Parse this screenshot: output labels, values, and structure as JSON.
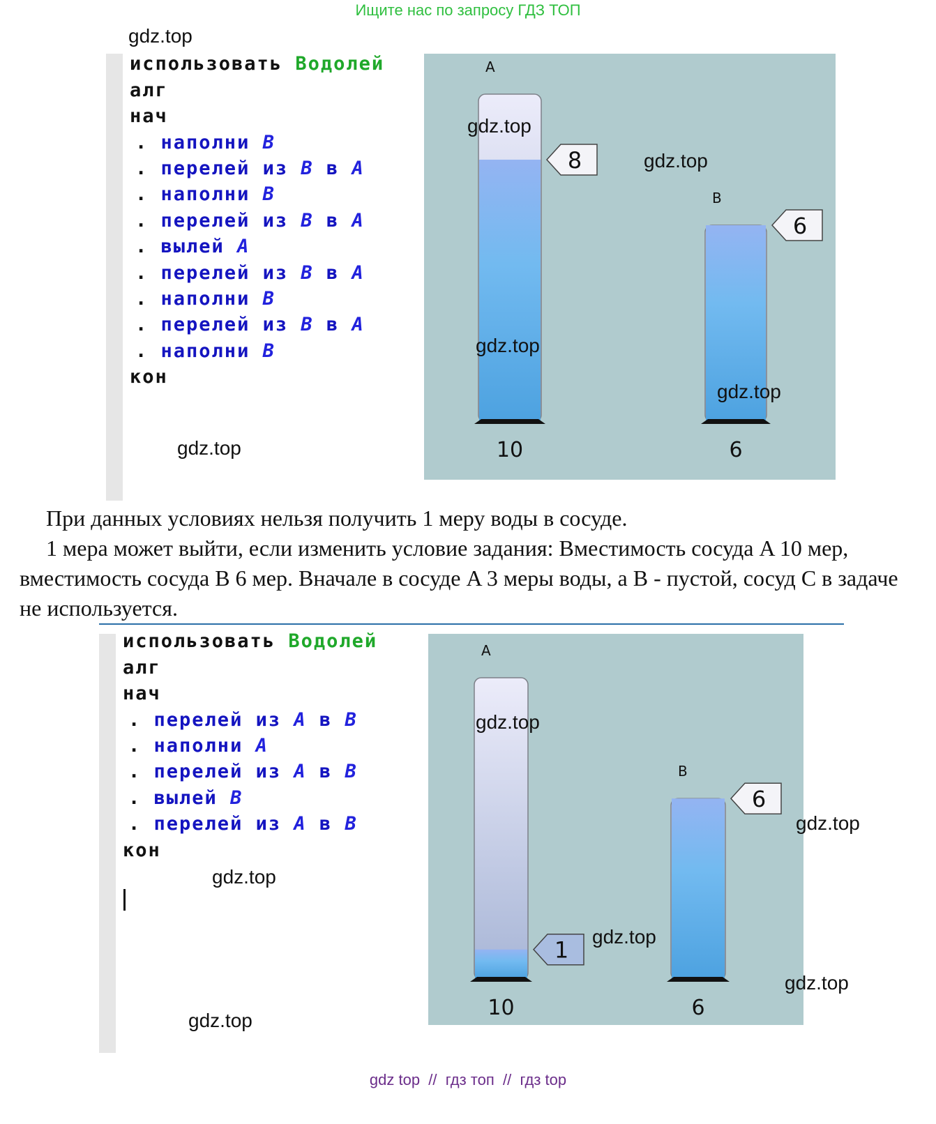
{
  "header": {
    "slogan": "Ищите нас по запросу ГДЗ ТОП"
  },
  "watermark": "gdz.top",
  "examples": [
    {
      "code": [
        [
          "использовать",
          "Водолей"
        ],
        [
          "алг"
        ],
        [
          "нач"
        ],
        [
          ".",
          "наполни",
          "B"
        ],
        [
          ".",
          "перелей",
          "из",
          "B",
          "в",
          "A"
        ],
        [
          ".",
          "наполни",
          "B"
        ],
        [
          ".",
          "перелей",
          "из",
          "B",
          "в",
          "A"
        ],
        [
          ".",
          "вылей",
          "A"
        ],
        [
          ".",
          "перелей",
          "из",
          "B",
          "в",
          "A"
        ],
        [
          ".",
          "наполни",
          "B"
        ],
        [
          ".",
          "перелей",
          "из",
          "B",
          "в",
          "A"
        ],
        [
          ".",
          "наполни",
          "B"
        ],
        [
          "кон"
        ]
      ],
      "vessels": [
        {
          "name": "A",
          "capacity": 10,
          "level": 8
        },
        {
          "name": "B",
          "capacity": 6,
          "level": 6
        }
      ]
    },
    {
      "code": [
        [
          "использовать",
          "Водолей"
        ],
        [
          "алг"
        ],
        [
          "нач"
        ],
        [
          ".",
          "перелей",
          "из",
          "A",
          "в",
          "B"
        ],
        [
          ".",
          "наполни",
          "A"
        ],
        [
          ".",
          "перелей",
          "из",
          "A",
          "в",
          "B"
        ],
        [
          ".",
          "вылей",
          "B"
        ],
        [
          ".",
          "перелей",
          "из",
          "A",
          "в",
          "B"
        ],
        [
          "кон"
        ]
      ],
      "vessels": [
        {
          "name": "A",
          "capacity": 10,
          "level": 1
        },
        {
          "name": "B",
          "capacity": 6,
          "level": 6
        }
      ]
    }
  ],
  "text": {
    "paragraphs": [
      "При данных условиях нельзя получить 1 меру воды в сосуде.",
      "1 мера может выйти, если изменить условие задания: Вместимость сосуда A 10 мер, вместимость сосуда B 6 мер. Вначале в сосуде A 3 меры воды, а B - пустой, сосуд C в задаче не используется."
    ]
  },
  "footer": "gdz top  //  гдз топ  //  гдз top"
}
